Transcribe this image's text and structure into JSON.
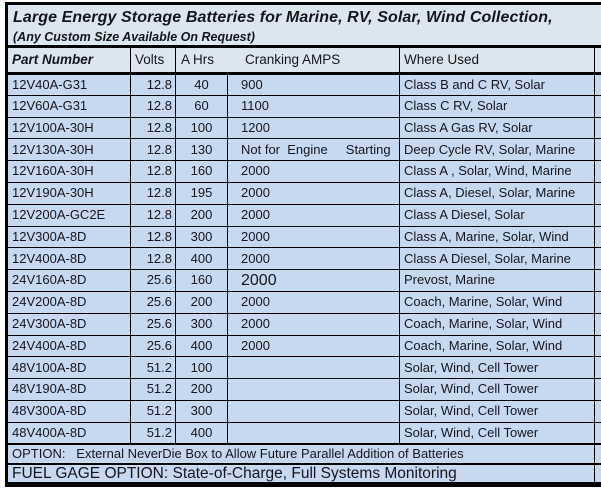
{
  "title": "Large Energy Storage Batteries for Marine, RV, Solar, Wind Collection,",
  "subtitle": "(Any Custom Size Available On Request)",
  "columns": {
    "part": "Part Number",
    "volts": "Volts",
    "ahrs": "A Hrs",
    "cranking": "Cranking AMPS",
    "used": "Where Used"
  },
  "rows": [
    {
      "part": "12V40A-G31",
      "volts": "12.8",
      "ahrs": "40",
      "cranking": "900",
      "used": "Class B and C RV, Solar",
      "large": false
    },
    {
      "part": "12V60A-G31",
      "volts": "12.8",
      "ahrs": "60",
      "cranking": "1100",
      "used": "Class C RV, Solar",
      "large": false
    },
    {
      "part": "12V100A-30H",
      "volts": "12.8",
      "ahrs": "100",
      "cranking": "1200",
      "used": "Class A Gas RV, Solar",
      "large": false
    },
    {
      "part": "12V130A-30H",
      "volts": "12.8",
      "ahrs": "130",
      "cranking": "Not for  Engine     Starting",
      "used": "Deep Cycle RV, Solar, Marine",
      "large": false
    },
    {
      "part": "12V160A-30H",
      "volts": "12.8",
      "ahrs": "160",
      "cranking": "2000",
      "used": "Class A , Solar, Wind, Marine",
      "large": false
    },
    {
      "part": "12V190A-30H",
      "volts": "12.8",
      "ahrs": "195",
      "cranking": "2000",
      "used": "Class A, Diesel, Solar, Marine",
      "large": false
    },
    {
      "part": "12V200A-GC2E",
      "volts": "12.8",
      "ahrs": "200",
      "cranking": "2000",
      "used": "Class A Diesel, Solar",
      "large": false
    },
    {
      "part": "12V300A-8D",
      "volts": "12.8",
      "ahrs": "300",
      "cranking": "2000",
      "used": "Class A, Marine, Solar, Wind",
      "large": false
    },
    {
      "part": "12V400A-8D",
      "volts": "12.8",
      "ahrs": "400",
      "cranking": "2000",
      "used": "Class A Diesel, Solar, Marine",
      "large": false
    },
    {
      "part": "24V160A-8D",
      "volts": "25.6",
      "ahrs": "160",
      "cranking": "2000",
      "used": "Prevost, Marine",
      "large": true
    },
    {
      "part": "24V200A-8D",
      "volts": "25.6",
      "ahrs": "200",
      "cranking": "2000",
      "used": "Coach, Marine, Solar, Wind",
      "large": false
    },
    {
      "part": "24V300A-8D",
      "volts": "25.6",
      "ahrs": "300",
      "cranking": "2000",
      "used": "Coach, Marine, Solar, Wind",
      "large": false
    },
    {
      "part": "24V400A-8D",
      "volts": "25.6",
      "ahrs": "400",
      "cranking": "2000",
      "used": "Coach, Marine, Solar, Wind",
      "large": false
    },
    {
      "part": "48V100A-8D",
      "volts": "51.2",
      "ahrs": "100",
      "cranking": "",
      "used": "Solar, Wind, Cell Tower",
      "large": false
    },
    {
      "part": "48V190A-8D",
      "volts": "51.2",
      "ahrs": "200",
      "cranking": "",
      "used": "Solar, Wind, Cell Tower",
      "large": false
    },
    {
      "part": "48V300A-8D",
      "volts": "51.2",
      "ahrs": "300",
      "cranking": "",
      "used": "Solar, Wind, Cell Tower",
      "large": false
    },
    {
      "part": "48V400A-8D",
      "volts": "51.2",
      "ahrs": "400",
      "cranking": "",
      "used": "Solar, Wind, Cell Tower",
      "large": false
    }
  ],
  "footer": {
    "option": "OPTION:   External NeverDie Box to Allow Future Parallel Addition of Batteries",
    "fuel_gage": "FUEL GAGE OPTION: State-of-Charge, Full Systems Monitoring"
  },
  "colors": {
    "header_fill": "#dce6f1",
    "row_fill": "#c6d9f1",
    "border": "#000000",
    "text": "#15151e"
  }
}
